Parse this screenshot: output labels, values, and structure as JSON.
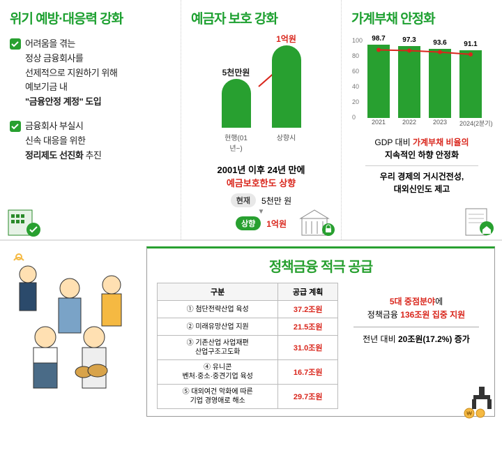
{
  "panel1": {
    "title": "위기 예방·대응력 강화",
    "items": [
      {
        "lines": [
          "어려움을 겪는",
          "정상 금융회사를",
          "선제적으로 지원하기 위해",
          "예보기금 내"
        ],
        "bold_quoted": "\"금융안정 계정\" 도입"
      },
      {
        "lines": [
          "금융회사 부실시",
          "신속 대응을 위한"
        ],
        "bold_line": "정리제도 선진화",
        "bold_suffix": " 추진"
      }
    ]
  },
  "panel2": {
    "title": "예금자 보호 강화",
    "chart": {
      "bars": [
        {
          "label_top": "5천만원",
          "label_bot": "현행(01년~)",
          "height": 70,
          "color": "#28a030",
          "top_color": "#222"
        },
        {
          "label_top": "1억원",
          "label_bot": "상향시",
          "height": 118,
          "color": "#28a030",
          "top_color": "#d9261c"
        }
      ],
      "arrow_color": "#d9261c"
    },
    "text": {
      "line1": "2001년 이후 24년 만에",
      "line2": "예금보호한도 상향",
      "current_tag": "현재",
      "current_val": "5천만 원",
      "up_tag": "상향",
      "up_val": "1억원"
    }
  },
  "panel3": {
    "title": "가계부채 안정화",
    "chart": {
      "ymax": 100,
      "ystep": 20,
      "bars": [
        {
          "x": "2021",
          "v": 98.7
        },
        {
          "x": "2022",
          "v": 97.3
        },
        {
          "x": "2023",
          "v": 93.6
        },
        {
          "x": "2024(2분기)",
          "v": 91.1
        }
      ],
      "bar_color": "#28a030",
      "line_color": "#d9261c",
      "line_y": [
        92,
        91,
        89,
        86
      ]
    },
    "text": {
      "a_pre": "GDP 대비 ",
      "a_red": "가계부채 비율의",
      "b": "지속적인 하향 안정화",
      "c": "우리 경제의 거시건전성,",
      "d": "대외신인도 제고"
    }
  },
  "bottom": {
    "title": "정책금융 적극 공급",
    "table": {
      "head": [
        "구분",
        "공급 계획"
      ],
      "rows": [
        {
          "cat": "① 첨단전략산업 육성",
          "amt": "37.2조원"
        },
        {
          "cat": "② 미래유망산업 지원",
          "amt": "21.5조원"
        },
        {
          "cat": "③ 기존산업 사업재편\n산업구조고도화",
          "amt": "31.0조원"
        },
        {
          "cat": "④ 유니콘\n벤처·중소·중견기업 육성",
          "amt": "16.7조원"
        },
        {
          "cat": "⑤ 대외여건 악화에 따른\n기업 경영애로 해소",
          "amt": "29.7조원"
        }
      ]
    },
    "right": {
      "l1_pre": "5대 중점분야",
      "l1_suf": "에",
      "l2_a": "정책금융 ",
      "l2_b": "136조원 집중 지원",
      "l3_a": "전년 대비 ",
      "l3_b": "20조원(17.2%) 증가"
    }
  }
}
